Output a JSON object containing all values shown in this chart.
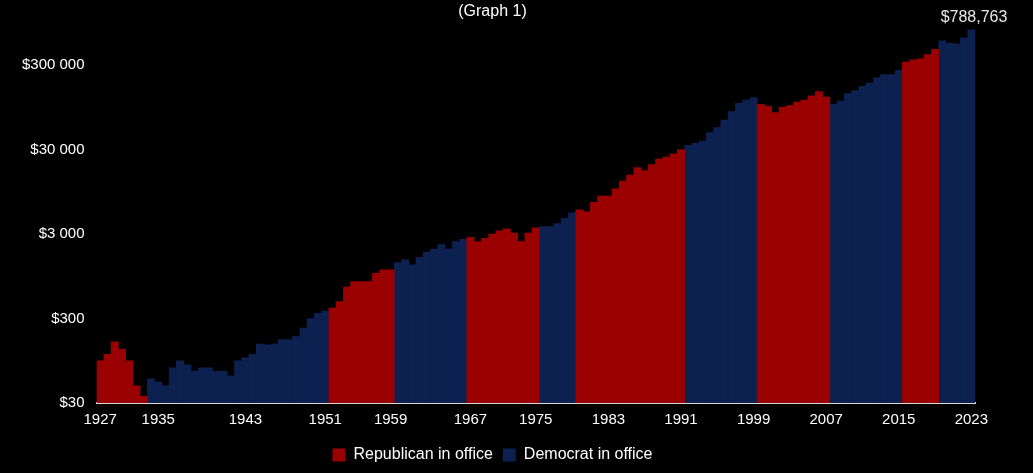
{
  "chart_data": {
    "type": "bar",
    "title": "(Graph 1)",
    "categories": [
      "1927",
      null,
      null,
      null,
      null,
      null,
      null,
      null,
      "1935",
      null,
      null,
      null,
      null,
      null,
      null,
      null,
      null,
      null,
      null,
      null,
      "1943",
      null,
      null,
      null,
      null,
      null,
      null,
      null,
      null,
      null,
      null,
      "1951",
      null,
      null,
      null,
      null,
      null,
      null,
      null,
      null,
      "1959",
      null,
      null,
      null,
      null,
      null,
      null,
      null,
      null,
      null,
      null,
      "1967",
      null,
      null,
      null,
      null,
      null,
      null,
      null,
      null,
      "1975",
      null,
      null,
      null,
      null,
      null,
      null,
      null,
      null,
      null,
      "1983",
      null,
      null,
      null,
      null,
      null,
      null,
      null,
      null,
      null,
      "1991",
      null,
      null,
      null,
      null,
      null,
      null,
      null,
      null,
      null,
      "1999",
      null,
      null,
      null,
      null,
      null,
      null,
      null,
      null,
      null,
      "2007",
      null,
      null,
      null,
      null,
      null,
      null,
      null,
      null,
      null,
      "2015",
      null,
      null,
      null,
      null,
      null,
      null,
      null,
      null,
      null,
      "2023"
    ],
    "series": [
      {
        "name": "Republican in office",
        "color": "#9b0000",
        "values": [
          95,
          113,
          159,
          130,
          95,
          48,
          36,
          null,
          null,
          null,
          null,
          null,
          null,
          null,
          null,
          null,
          null,
          null,
          null,
          null,
          null,
          null,
          null,
          null,
          null,
          null,
          null,
          null,
          null,
          null,
          null,
          null,
          400,
          475,
          710,
          820,
          820,
          820,
          1030,
          1130,
          1130,
          null,
          null,
          null,
          null,
          null,
          null,
          null,
          null,
          null,
          null,
          2750,
          2450,
          2670,
          3000,
          3270,
          3470,
          3090,
          2450,
          3090,
          3570,
          null,
          null,
          null,
          null,
          null,
          5820,
          5490,
          7110,
          8450,
          8450,
          10300,
          12700,
          15000,
          18400,
          16900,
          20000,
          23200,
          24500,
          26700,
          30000,
          null,
          null,
          null,
          null,
          null,
          null,
          null,
          null,
          null,
          null,
          103000,
          97600,
          82200,
          94900,
          100000,
          110000,
          116000,
          130000,
          146000,
          126000,
          null,
          null,
          null,
          null,
          null,
          null,
          null,
          null,
          null,
          null,
          327000,
          347000,
          357000,
          400000,
          462000,
          null,
          null,
          null,
          null,
          null
        ]
      },
      {
        "name": "Democrat in office",
        "color": "#0d2150",
        "values": [
          null,
          null,
          null,
          null,
          null,
          null,
          null,
          58,
          53,
          48,
          78,
          95,
          85,
          71,
          78,
          78,
          71,
          71,
          63,
          95,
          103,
          113,
          150,
          146,
          150,
          169,
          169,
          184,
          232,
          300,
          346,
          367,
          null,
          null,
          null,
          null,
          null,
          null,
          null,
          null,
          null,
          1380,
          1500,
          1300,
          1590,
          1840,
          2000,
          2250,
          2000,
          2450,
          2600,
          null,
          null,
          null,
          null,
          null,
          null,
          null,
          null,
          null,
          null,
          3670,
          3670,
          4000,
          4620,
          5340,
          null,
          null,
          null,
          null,
          null,
          null,
          null,
          null,
          null,
          null,
          null,
          null,
          null,
          null,
          null,
          33700,
          35700,
          37800,
          47600,
          54900,
          67200,
          84600,
          106000,
          116000,
          123000,
          null,
          null,
          null,
          null,
          null,
          null,
          null,
          null,
          null,
          null,
          103000,
          113000,
          138000,
          150000,
          169000,
          184000,
          212000,
          232000,
          232000,
          260000,
          null,
          null,
          null,
          null,
          null,
          582000,
          549000,
          533000,
          634000,
          788763
        ]
      }
    ],
    "ylim": [
      30,
      800000
    ],
    "yticks": [
      {
        "value": 30,
        "label": "$30"
      },
      {
        "value": 300,
        "label": "$300"
      },
      {
        "value": 3000,
        "label": "$3 000"
      },
      {
        "value": 30000,
        "label": "$30 000"
      },
      {
        "value": 300000,
        "label": "$300 000"
      }
    ],
    "log": "y",
    "legend": "bottom",
    "annotations": [
      {
        "text": "$788,763",
        "x": "2023",
        "y": 788763
      }
    ]
  }
}
